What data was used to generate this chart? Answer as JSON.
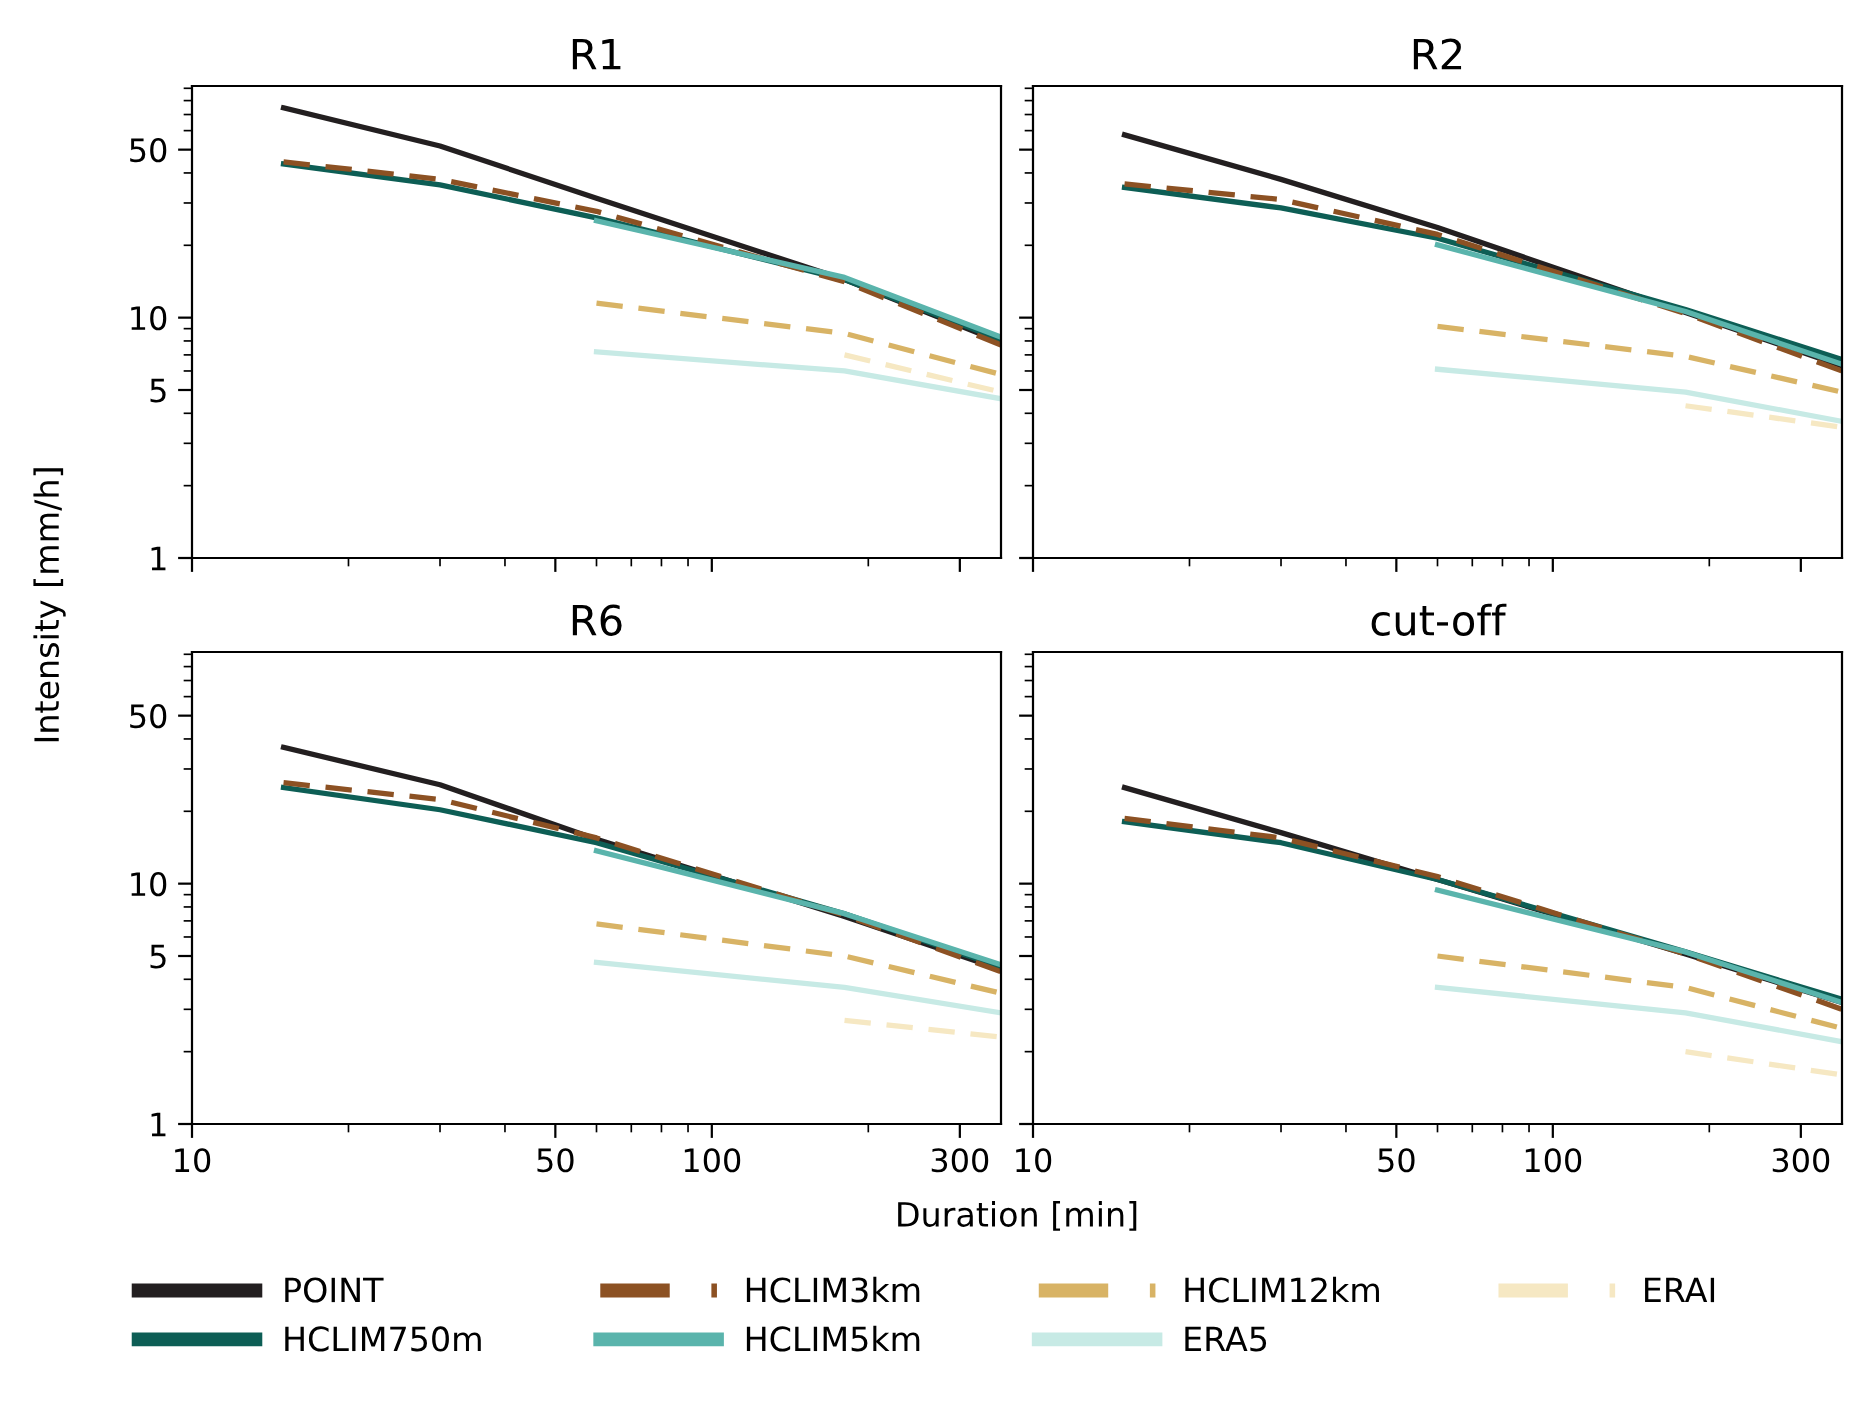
{
  "chart_data": [
    {
      "type": "line",
      "title": "R1",
      "log": "xy",
      "legend": "bottom",
      "tick_labels": "y",
      "xlim": [
        10,
        360
      ],
      "ylim": [
        1,
        92
      ],
      "xticks": [
        10,
        {
          "value": 20,
          "label": null
        },
        {
          "value": 30,
          "label": null
        },
        {
          "value": 40,
          "label": null
        },
        50,
        {
          "value": 60,
          "label": null
        },
        {
          "value": 70,
          "label": null
        },
        {
          "value": 80,
          "label": null
        },
        {
          "value": 90,
          "label": null
        },
        100,
        {
          "value": 200,
          "label": null
        },
        300
      ],
      "yticks": [
        1,
        {
          "value": 2,
          "label": null
        },
        {
          "value": 3,
          "label": null
        },
        {
          "value": 4,
          "label": null
        },
        5,
        {
          "value": 6,
          "label": null
        },
        {
          "value": 7,
          "label": null
        },
        {
          "value": 8,
          "label": null
        },
        {
          "value": 9,
          "label": null
        },
        10,
        {
          "value": 20,
          "label": null
        },
        {
          "value": 30,
          "label": null
        },
        {
          "value": 40,
          "label": null
        },
        50,
        {
          "value": 60,
          "label": null
        },
        {
          "value": 70,
          "label": null
        },
        {
          "value": 80,
          "label": null
        },
        {
          "value": 90,
          "label": null
        }
      ],
      "series": [
        {
          "name": "POINT",
          "color": "#231f20",
          "line_style": "solid",
          "x": [
            15,
            30,
            60,
            180,
            360
          ],
          "values": [
            74.6,
            51.8,
            31.4,
            14.4,
            7.9
          ]
        },
        {
          "name": "HCLIM750m",
          "color": "#0d5e55",
          "line_style": "solid",
          "x": [
            15,
            30,
            60,
            180,
            360
          ],
          "values": [
            43.6,
            35.7,
            26,
            14.4,
            8.1
          ]
        },
        {
          "name": "HCLIM3km",
          "color": "#8c5123",
          "line_style": "dashed",
          "x": [
            15,
            30,
            60,
            180,
            360
          ],
          "values": [
            44.5,
            37.6,
            27.7,
            14.1,
            7.7
          ]
        },
        {
          "name": "HCLIM5km",
          "color": "#5ab4ac",
          "line_style": "solid",
          "x": [
            60,
            180,
            360
          ],
          "values": [
            25.3,
            14.7,
            8.3
          ]
        },
        {
          "name": "HCLIM12km",
          "color": "#d8b365",
          "line_style": "dashed",
          "x": [
            60,
            180,
            360
          ],
          "values": [
            11.5,
            8.6,
            5.8
          ]
        },
        {
          "name": "ERA5",
          "color": "#c7eae5",
          "line_style": "solid",
          "x": [
            60,
            180,
            360
          ],
          "values": [
            7.2,
            6.0,
            4.6
          ]
        },
        {
          "name": "ERAI",
          "color": "#f6e8c3",
          "line_style": "dashed",
          "x": [
            180,
            360
          ],
          "values": [
            7.0,
            4.9
          ]
        }
      ]
    },
    {
      "type": "line",
      "title": "R2",
      "log": "xy",
      "legend": "bottom",
      "tick_labels": false,
      "xlim": [
        10,
        360
      ],
      "ylim": [
        1,
        92
      ],
      "xticks": [
        10,
        {
          "value": 20,
          "label": null
        },
        {
          "value": 30,
          "label": null
        },
        {
          "value": 40,
          "label": null
        },
        50,
        {
          "value": 60,
          "label": null
        },
        {
          "value": 70,
          "label": null
        },
        {
          "value": 80,
          "label": null
        },
        {
          "value": 90,
          "label": null
        },
        100,
        {
          "value": 200,
          "label": null
        },
        300
      ],
      "yticks": [
        1,
        {
          "value": 2,
          "label": null
        },
        {
          "value": 3,
          "label": null
        },
        {
          "value": 4,
          "label": null
        },
        5,
        {
          "value": 6,
          "label": null
        },
        {
          "value": 7,
          "label": null
        },
        {
          "value": 8,
          "label": null
        },
        {
          "value": 9,
          "label": null
        },
        10,
        {
          "value": 20,
          "label": null
        },
        {
          "value": 30,
          "label": null
        },
        {
          "value": 40,
          "label": null
        },
        50,
        {
          "value": 60,
          "label": null
        },
        {
          "value": 70,
          "label": null
        },
        {
          "value": 80,
          "label": null
        },
        {
          "value": 90,
          "label": null
        }
      ],
      "series": [
        {
          "name": "POINT",
          "color": "#231f20",
          "line_style": "solid",
          "x": [
            15,
            30,
            60,
            180,
            360
          ],
          "values": [
            57.6,
            37.6,
            23.7,
            10.5,
            6.3
          ]
        },
        {
          "name": "HCLIM750m",
          "color": "#0d5e55",
          "line_style": "solid",
          "x": [
            15,
            30,
            60,
            180,
            360
          ],
          "values": [
            34.8,
            28.6,
            21.4,
            10.8,
            6.7
          ]
        },
        {
          "name": "HCLIM3km",
          "color": "#8c5123",
          "line_style": "dashed",
          "x": [
            15,
            30,
            60,
            180,
            360
          ],
          "values": [
            36,
            31,
            22.2,
            10.4,
            6.0
          ]
        },
        {
          "name": "HCLIM5km",
          "color": "#5ab4ac",
          "line_style": "solid",
          "x": [
            60,
            180,
            360
          ],
          "values": [
            20.1,
            10.6,
            6.4
          ]
        },
        {
          "name": "HCLIM12km",
          "color": "#d8b365",
          "line_style": "dashed",
          "x": [
            60,
            180,
            360
          ],
          "values": [
            9.2,
            6.9,
            4.9
          ]
        },
        {
          "name": "ERA5",
          "color": "#c7eae5",
          "line_style": "solid",
          "x": [
            60,
            180,
            360
          ],
          "values": [
            6.1,
            4.9,
            3.7
          ]
        },
        {
          "name": "ERAI",
          "color": "#f6e8c3",
          "line_style": "dashed",
          "x": [
            180,
            360
          ],
          "values": [
            4.3,
            3.5
          ]
        }
      ]
    },
    {
      "type": "line",
      "title": "R6",
      "xlabel": "Duration [min]",
      "ylabel": "Intensity [mm/h]",
      "log": "xy",
      "legend": "bottom",
      "xlim": [
        10,
        360
      ],
      "ylim": [
        1,
        92
      ],
      "xticks": [
        10,
        {
          "value": 20,
          "label": null
        },
        {
          "value": 30,
          "label": null
        },
        {
          "value": 40,
          "label": null
        },
        50,
        {
          "value": 60,
          "label": null
        },
        {
          "value": 70,
          "label": null
        },
        {
          "value": 80,
          "label": null
        },
        {
          "value": 90,
          "label": null
        },
        100,
        {
          "value": 200,
          "label": null
        },
        300
      ],
      "yticks": [
        1,
        {
          "value": 2,
          "label": null
        },
        {
          "value": 3,
          "label": null
        },
        {
          "value": 4,
          "label": null
        },
        5,
        {
          "value": 6,
          "label": null
        },
        {
          "value": 7,
          "label": null
        },
        {
          "value": 8,
          "label": null
        },
        {
          "value": 9,
          "label": null
        },
        10,
        {
          "value": 20,
          "label": null
        },
        {
          "value": 30,
          "label": null
        },
        {
          "value": 40,
          "label": null
        },
        50,
        {
          "value": 60,
          "label": null
        },
        {
          "value": 70,
          "label": null
        },
        {
          "value": 80,
          "label": null
        },
        {
          "value": 90,
          "label": null
        }
      ],
      "series": [
        {
          "name": "POINT",
          "color": "#231f20",
          "line_style": "solid",
          "x": [
            15,
            30,
            60,
            180,
            360
          ],
          "values": [
            36.9,
            25.8,
            15.3,
            7.3,
            4.4
          ]
        },
        {
          "name": "HCLIM750m",
          "color": "#0d5e55",
          "line_style": "solid",
          "x": [
            15,
            30,
            60,
            180,
            360
          ],
          "values": [
            25.1,
            20.3,
            14.8,
            7.5,
            4.5
          ]
        },
        {
          "name": "HCLIM3km",
          "color": "#8c5123",
          "line_style": "dashed",
          "x": [
            15,
            30,
            60,
            180,
            360
          ],
          "values": [
            26.3,
            22.4,
            15.5,
            7.4,
            4.3
          ]
        },
        {
          "name": "HCLIM5km",
          "color": "#5ab4ac",
          "line_style": "solid",
          "x": [
            60,
            180,
            360
          ],
          "values": [
            13.7,
            7.5,
            4.6
          ]
        },
        {
          "name": "HCLIM12km",
          "color": "#d8b365",
          "line_style": "dashed",
          "x": [
            60,
            180,
            360
          ],
          "values": [
            6.8,
            5.0,
            3.5
          ]
        },
        {
          "name": "ERA5",
          "color": "#c7eae5",
          "line_style": "solid",
          "x": [
            60,
            180,
            360
          ],
          "values": [
            4.7,
            3.7,
            2.9
          ]
        },
        {
          "name": "ERAI",
          "color": "#f6e8c3",
          "line_style": "dashed",
          "x": [
            180,
            360
          ],
          "values": [
            2.7,
            2.3
          ]
        }
      ]
    },
    {
      "type": "line",
      "title": "cut-off",
      "log": "xy",
      "legend": "bottom",
      "tick_labels": "x",
      "xlim": [
        10,
        360
      ],
      "ylim": [
        1,
        92
      ],
      "xticks": [
        10,
        {
          "value": 20,
          "label": null
        },
        {
          "value": 30,
          "label": null
        },
        {
          "value": 40,
          "label": null
        },
        50,
        {
          "value": 60,
          "label": null
        },
        {
          "value": 70,
          "label": null
        },
        {
          "value": 80,
          "label": null
        },
        {
          "value": 90,
          "label": null
        },
        100,
        {
          "value": 200,
          "label": null
        },
        300
      ],
      "yticks": [
        1,
        {
          "value": 2,
          "label": null
        },
        {
          "value": 3,
          "label": null
        },
        {
          "value": 4,
          "label": null
        },
        5,
        {
          "value": 6,
          "label": null
        },
        {
          "value": 7,
          "label": null
        },
        {
          "value": 8,
          "label": null
        },
        {
          "value": 9,
          "label": null
        },
        10,
        {
          "value": 20,
          "label": null
        },
        {
          "value": 30,
          "label": null
        },
        {
          "value": 40,
          "label": null
        },
        50,
        {
          "value": 60,
          "label": null
        },
        {
          "value": 70,
          "label": null
        },
        {
          "value": 80,
          "label": null
        },
        {
          "value": 90,
          "label": null
        }
      ],
      "series": [
        {
          "name": "POINT",
          "color": "#231f20",
          "line_style": "solid",
          "x": [
            15,
            30,
            60,
            180,
            360
          ],
          "values": [
            25.1,
            16.3,
            10.4,
            5.1,
            3.2
          ]
        },
        {
          "name": "HCLIM750m",
          "color": "#0d5e55",
          "line_style": "solid",
          "x": [
            15,
            30,
            60,
            180,
            360
          ],
          "values": [
            18.1,
            14.8,
            10.4,
            5.2,
            3.3
          ]
        },
        {
          "name": "HCLIM3km",
          "color": "#8c5123",
          "line_style": "dashed",
          "x": [
            15,
            30,
            60,
            180,
            360
          ],
          "values": [
            18.7,
            15.5,
            10.7,
            5.1,
            3.0
          ]
        },
        {
          "name": "HCLIM5km",
          "color": "#5ab4ac",
          "line_style": "solid",
          "x": [
            60,
            180,
            360
          ],
          "values": [
            9.4,
            5.2,
            3.2
          ]
        },
        {
          "name": "HCLIM12km",
          "color": "#d8b365",
          "line_style": "dashed",
          "x": [
            60,
            180,
            360
          ],
          "values": [
            5.0,
            3.7,
            2.5
          ]
        },
        {
          "name": "ERA5",
          "color": "#c7eae5",
          "line_style": "solid",
          "x": [
            60,
            180,
            360
          ],
          "values": [
            3.7,
            2.9,
            2.2
          ]
        },
        {
          "name": "ERAI",
          "color": "#f6e8c3",
          "line_style": "dashed",
          "x": [
            180,
            360
          ],
          "values": [
            2.0,
            1.6
          ]
        }
      ]
    }
  ]
}
